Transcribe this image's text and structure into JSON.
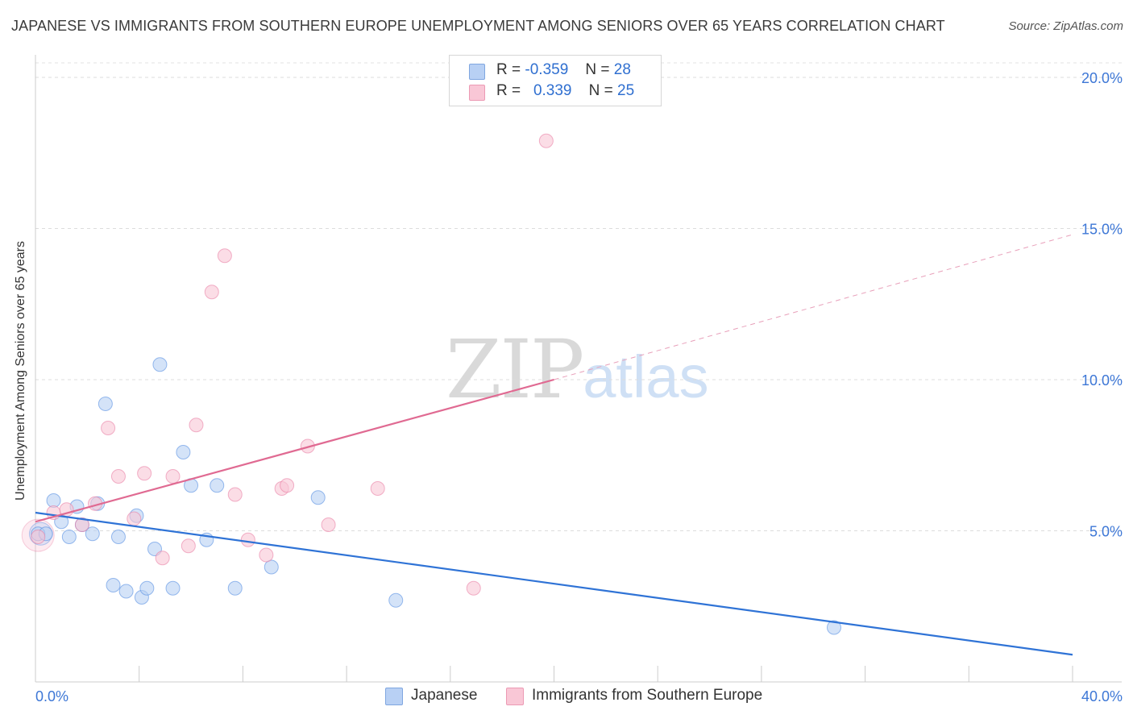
{
  "header": {
    "title": "JAPANESE VS IMMIGRANTS FROM SOUTHERN EUROPE UNEMPLOYMENT AMONG SENIORS OVER 65 YEARS CORRELATION CHART",
    "source": "Source: ZipAtlas.com"
  },
  "watermark": {
    "zip": "ZIP",
    "atlas": "atlas"
  },
  "legend": {
    "rows": [
      {
        "r_label": "R =",
        "r_value": "-0.359",
        "n_label": "N =",
        "n_value": "28",
        "color": "#b8d0f4",
        "border": "#7fa6e0"
      },
      {
        "r_label": "R =",
        "r_value": "0.339",
        "n_label": "N =",
        "n_value": "25",
        "color": "#f9c7d6",
        "border": "#ec9ab4"
      }
    ]
  },
  "bottom_legend": {
    "items": [
      {
        "label": "Japanese",
        "color": "#b8d0f4",
        "border": "#7fa6e0"
      },
      {
        "label": "Immigrants from Southern Europe",
        "color": "#f9c7d6",
        "border": "#ec9ab4"
      }
    ]
  },
  "chart_data": {
    "type": "scatter",
    "title": "JAPANESE VS IMMIGRANTS FROM SOUTHERN EUROPE UNEMPLOYMENT AMONG SENIORS OVER 65 YEARS CORRELATION CHART",
    "xlabel": "",
    "ylabel": "Unemployment Among Seniors over 65 years",
    "xlim": [
      0,
      40
    ],
    "ylim": [
      0,
      20
    ],
    "x_tick_labels": [
      "0.0%",
      "40.0%"
    ],
    "y_ticks": [
      5,
      10,
      15,
      20
    ],
    "y_tick_labels": [
      "5.0%",
      "10.0%",
      "15.0%",
      "20.0%"
    ],
    "grid": true,
    "legend_position": "top-center",
    "series": [
      {
        "name": "Japanese",
        "color": "#4a86e0",
        "fill": "#b8d0f4",
        "points": [
          [
            0.1,
            4.9
          ],
          [
            0.4,
            4.9
          ],
          [
            0.7,
            6.0
          ],
          [
            1.0,
            5.3
          ],
          [
            1.3,
            4.8
          ],
          [
            1.6,
            5.8
          ],
          [
            1.8,
            5.2
          ],
          [
            2.2,
            4.9
          ],
          [
            2.4,
            5.9
          ],
          [
            2.7,
            9.2
          ],
          [
            3.0,
            3.2
          ],
          [
            3.2,
            4.8
          ],
          [
            3.5,
            3.0
          ],
          [
            3.9,
            5.5
          ],
          [
            4.1,
            2.8
          ],
          [
            4.3,
            3.1
          ],
          [
            4.6,
            4.4
          ],
          [
            4.8,
            10.5
          ],
          [
            5.3,
            3.1
          ],
          [
            5.7,
            7.6
          ],
          [
            6.0,
            6.5
          ],
          [
            6.6,
            4.7
          ],
          [
            7.0,
            6.5
          ],
          [
            7.7,
            3.1
          ],
          [
            9.1,
            3.8
          ],
          [
            10.9,
            6.1
          ],
          [
            13.9,
            2.7
          ],
          [
            30.8,
            1.8
          ]
        ],
        "trend": {
          "x": [
            0,
            40
          ],
          "y": [
            5.6,
            0.9
          ]
        }
      },
      {
        "name": "Immigrants from Southern Europe",
        "color": "#e8779e",
        "fill": "#f9c7d6",
        "points": [
          [
            0.1,
            4.8
          ],
          [
            0.7,
            5.6
          ],
          [
            1.2,
            5.7
          ],
          [
            1.8,
            5.2
          ],
          [
            2.3,
            5.9
          ],
          [
            2.8,
            8.4
          ],
          [
            3.2,
            6.8
          ],
          [
            3.8,
            5.4
          ],
          [
            4.2,
            6.9
          ],
          [
            4.9,
            4.1
          ],
          [
            5.3,
            6.8
          ],
          [
            5.9,
            4.5
          ],
          [
            6.2,
            8.5
          ],
          [
            6.8,
            12.9
          ],
          [
            7.3,
            14.1
          ],
          [
            7.7,
            6.2
          ],
          [
            8.2,
            4.7
          ],
          [
            8.9,
            4.2
          ],
          [
            9.5,
            6.4
          ],
          [
            9.7,
            6.5
          ],
          [
            10.5,
            7.8
          ],
          [
            11.3,
            5.2
          ],
          [
            13.2,
            6.4
          ],
          [
            16.9,
            3.1
          ],
          [
            19.7,
            17.9
          ]
        ],
        "trend": {
          "x": [
            0,
            20
          ],
          "y": [
            5.3,
            10.0
          ]
        },
        "trend_extension": {
          "x": [
            20,
            40
          ],
          "y": [
            10.0,
            14.8
          ]
        }
      }
    ]
  }
}
